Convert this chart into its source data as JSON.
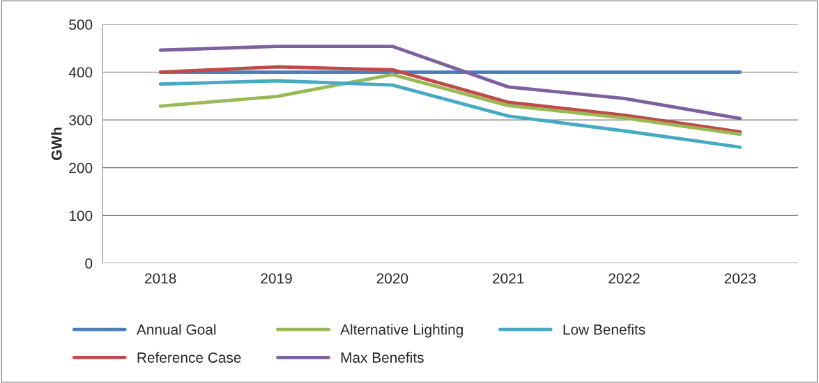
{
  "chart_data": {
    "type": "line",
    "ylabel": "GWh",
    "categories": [
      "2018",
      "2019",
      "2020",
      "2021",
      "2022",
      "2023"
    ],
    "series": [
      {
        "name": "Annual Goal",
        "color": "#4a7ebb",
        "values": [
          400,
          400,
          400,
          400,
          400,
          400
        ]
      },
      {
        "name": "Reference Case",
        "color": "#be4b48",
        "values": [
          400,
          411,
          405,
          337,
          310,
          275
        ]
      },
      {
        "name": "Alternative Lighting",
        "color": "#98b954",
        "values": [
          329,
          349,
          395,
          330,
          304,
          270
        ]
      },
      {
        "name": "Max Benefits",
        "color": "#7d60a0",
        "values": [
          446,
          454,
          454,
          369,
          345,
          303
        ]
      },
      {
        "name": "Low Benefits",
        "color": "#46aac5",
        "values": [
          375,
          382,
          373,
          308,
          277,
          243
        ]
      }
    ],
    "ylim": [
      0,
      500
    ],
    "yticks": [
      0,
      100,
      200,
      300,
      400,
      500
    ],
    "grid": "y",
    "legend": "bottom",
    "marker": "none",
    "line_style": "solid"
  }
}
